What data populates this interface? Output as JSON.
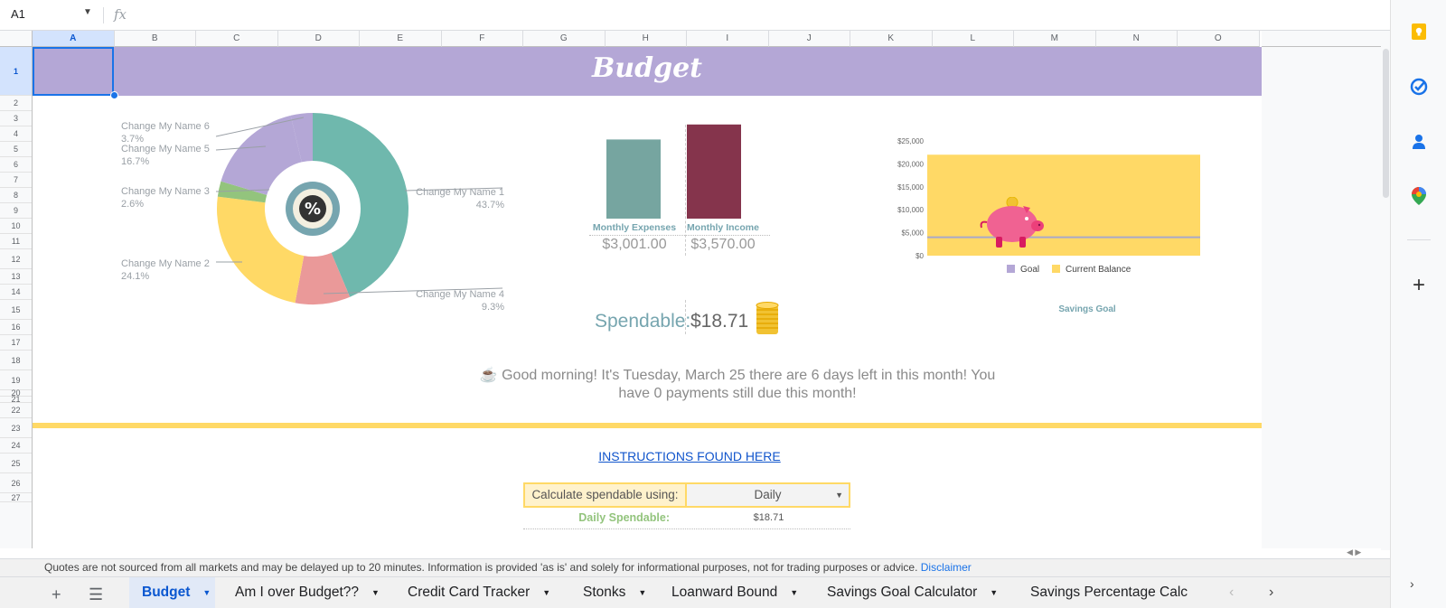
{
  "formula_bar": {
    "name_box": "A1",
    "fx": "fx",
    "formula": ""
  },
  "columns": [
    "A",
    "B",
    "C",
    "D",
    "E",
    "F",
    "G",
    "H",
    "I",
    "J",
    "K",
    "L",
    "M",
    "N",
    "O"
  ],
  "rows": [
    "1",
    "2",
    "3",
    "4",
    "5",
    "6",
    "7",
    "8",
    "9",
    "10",
    "11",
    "12",
    "13",
    "14",
    "15",
    "16",
    "17",
    "18",
    "19",
    "20",
    "21",
    "22",
    "23",
    "24",
    "25",
    "26",
    "27"
  ],
  "banner": {
    "title": "Budget",
    "color": "#b4a7d6"
  },
  "donut_chart": {
    "center_icon": "percent-icon",
    "slices": [
      {
        "name": "Change My Name 1",
        "pct": "43.7%",
        "value": 43.7,
        "color": "#6fb8ad"
      },
      {
        "name": "Change My Name 4",
        "pct": "9.3%",
        "value": 9.3,
        "color": "#ea9999"
      },
      {
        "name": "Change My Name 2",
        "pct": "24.1%",
        "value": 24.1,
        "color": "#ffd966"
      },
      {
        "name": "Change My Name 3",
        "pct": "2.6%",
        "value": 2.6,
        "color": "#93c47d"
      },
      {
        "name": "Change My Name 5",
        "pct": "16.7%",
        "value": 16.7,
        "color": "#b4a7d6"
      },
      {
        "name": "Change My Name 6",
        "pct": "3.7%",
        "value": 3.7,
        "color": "#b4a7d6"
      }
    ]
  },
  "bars": [
    {
      "label": "Monthly Expenses",
      "value_text": "$3,001.00",
      "value": 3001,
      "color": "#76a5a0"
    },
    {
      "label": "Monthly Income",
      "value_text": "$3,570.00",
      "value": 3570,
      "color": "#85344c"
    }
  ],
  "chart_data": {
    "type": "bar",
    "title": "Savings Goal",
    "yticks": [
      "$25,000",
      "$20,000",
      "$15,000",
      "$10,000",
      "$5,000",
      "$0"
    ],
    "ylim": [
      0,
      25000
    ],
    "series": [
      {
        "name": "Goal",
        "values": [
          4000
        ],
        "color": "#b4a7d6"
      },
      {
        "name": "Current Balance",
        "values": [
          22000
        ],
        "color": "#ffd966"
      }
    ],
    "legend": "bottom",
    "grid": false
  },
  "spendable": {
    "label": "Spendable:",
    "value": "$18.71",
    "coin_icon": "coin-stack-icon"
  },
  "greeting": {
    "icon": "☕",
    "line1": "Good morning!  It's Tuesday, March 25 there are 6 days left in this month! You",
    "line2": "have 0 payments still due this month!"
  },
  "instructions_link": "INSTRUCTIONS FOUND HERE",
  "calc": {
    "label": "Calculate spendable using:",
    "selected": "Daily",
    "daily_label": "Daily Spendable:",
    "daily_value": "$18.71"
  },
  "quotes_notice": {
    "text": "Quotes are not sourced from all markets and may be delayed up to 20 minutes. Information is provided 'as is' and solely for informational purposes, not for trading purposes or advice.",
    "link": "Disclaimer"
  },
  "sheet_tabs": [
    {
      "label": "Budget",
      "active": true
    },
    {
      "label": "Am I over Budget??",
      "active": false
    },
    {
      "label": "Credit Card Tracker",
      "active": false
    },
    {
      "label": "Stonks",
      "active": false
    },
    {
      "label": "Loanward Bound",
      "active": false
    },
    {
      "label": "Savings Goal Calculator",
      "active": false
    },
    {
      "label": "Savings Percentage Calc",
      "active": false
    }
  ],
  "side_panel": {
    "icons": [
      "keep-icon",
      "tasks-icon",
      "contacts-icon",
      "maps-icon",
      "add-icon"
    ]
  }
}
